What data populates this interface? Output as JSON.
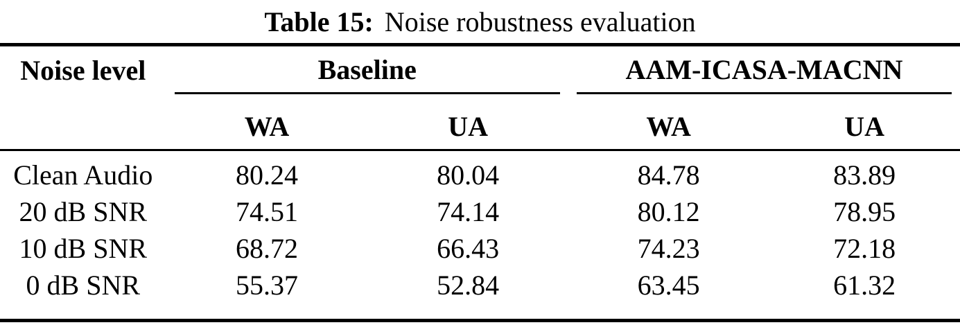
{
  "caption": {
    "label": "Table 15:",
    "text": "Noise robustness evaluation"
  },
  "table": {
    "row_header": "Noise level",
    "groups": [
      {
        "name": "Baseline",
        "subcols": [
          "WA",
          "UA"
        ]
      },
      {
        "name": "AAM-ICASA-MACNN",
        "subcols": [
          "WA",
          "UA"
        ]
      }
    ],
    "rows": [
      {
        "label": "Clean Audio",
        "values": [
          "80.24",
          "80.04",
          "84.78",
          "83.89"
        ]
      },
      {
        "label": "20 dB SNR",
        "values": [
          "74.51",
          "74.14",
          "80.12",
          "78.95"
        ]
      },
      {
        "label": "10 dB SNR",
        "values": [
          "68.72",
          "66.43",
          "74.23",
          "72.18"
        ]
      },
      {
        "label": "0 dB SNR",
        "values": [
          "55.37",
          "52.84",
          "63.45",
          "61.32"
        ]
      }
    ]
  },
  "colors": {
    "text": "#000000",
    "rule": "#000000",
    "background": "#ffffff"
  }
}
